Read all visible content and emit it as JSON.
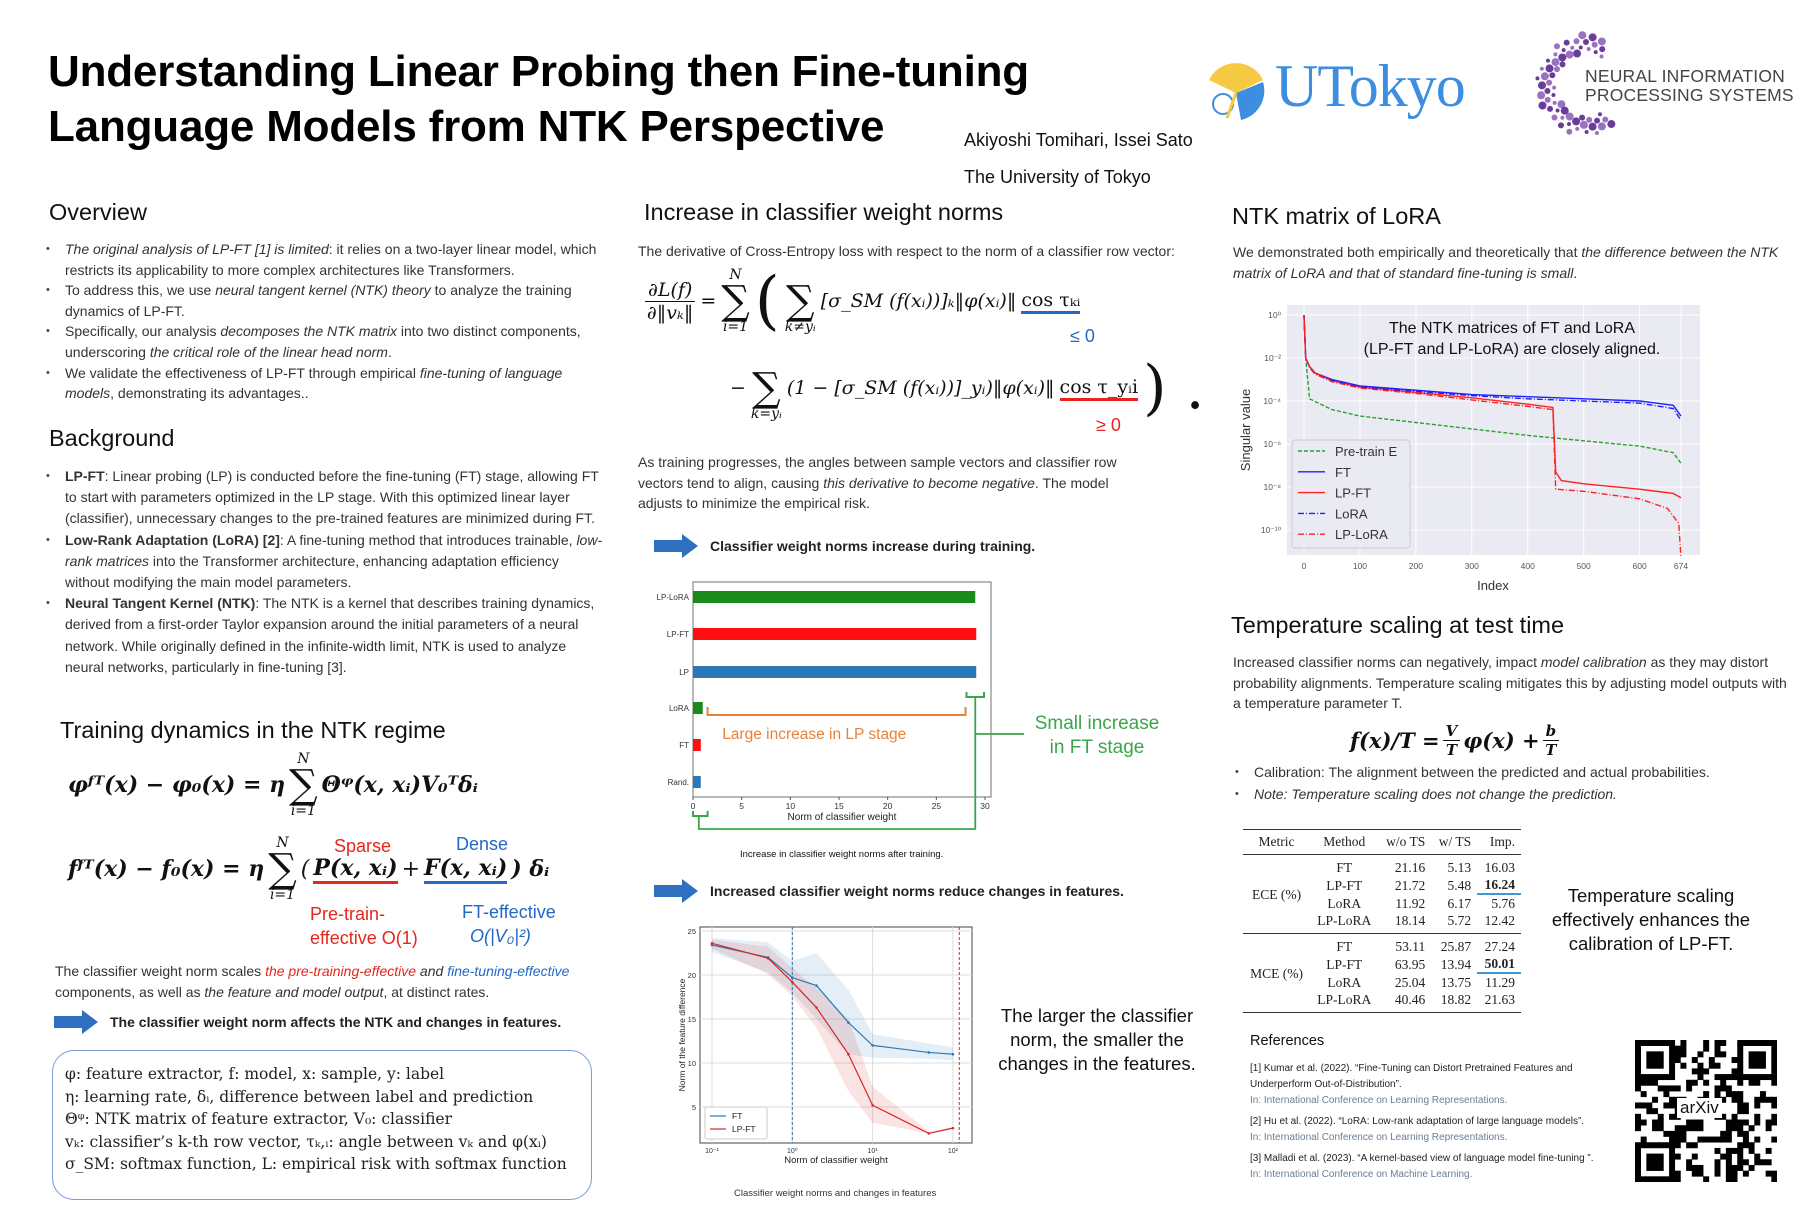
{
  "header": {
    "title_line1": "Understanding Linear Probing then Fine-tuning",
    "title_line2": "Language Models from NTK Perspective",
    "authors": "Akiyoshi Tomihari, Issei Sato",
    "affiliation": "The University of Tokyo",
    "logo_utokyo": "UTokyo",
    "logo_neurips_line1": "NEURAL INFORMATION",
    "logo_neurips_line2": "PROCESSING SYSTEMS"
  },
  "colors": {
    "red": "#e4261c",
    "blue": "#2168c8",
    "green": "#3aa64a",
    "orange": "#e8823a",
    "arrow": "#2f6fc0"
  },
  "overview": {
    "heading": "Overview",
    "bullets": [
      [
        [
          "The original analysis of LP-FT [1] is limited",
          "i"
        ],
        [
          ": it relies on a two-layer linear model, which restricts its applicability to more complex architectures like Transformers.",
          ""
        ]
      ],
      [
        [
          "To address this, we use ",
          ""
        ],
        [
          "neural tangent kernel (NTK) theory",
          "i"
        ],
        [
          " to analyze the training dynamics of LP-FT.",
          ""
        ]
      ],
      [
        [
          "Specifically, our analysis ",
          ""
        ],
        [
          "decomposes the NTK matrix",
          "i"
        ],
        [
          " into two distinct components, underscoring ",
          ""
        ],
        [
          "the critical role of the linear head norm",
          "i"
        ],
        [
          ".",
          ""
        ]
      ],
      [
        [
          "We validate the effectiveness of LP-FT through empirical ",
          ""
        ],
        [
          "fine-tuning of language models",
          "i"
        ],
        [
          ", demonstrating its advantages..",
          ""
        ]
      ]
    ]
  },
  "background": {
    "heading": "Background",
    "bullets": [
      [
        [
          "LP-FT",
          "b"
        ],
        [
          ": Linear probing (LP) is conducted before the fine-tuning (FT) stage, allowing FT to start with parameters optimized in the LP stage. With this optimized linear layer (classifier), unnecessary changes to the pre-trained features are minimized during FT.",
          ""
        ]
      ],
      [
        [
          "Low-Rank Adaptation (LoRA) [2]",
          "b"
        ],
        [
          ": A fine-tuning method that introduces trainable, ",
          ""
        ],
        [
          "low-rank matrices",
          "i"
        ],
        [
          " into the Transformer architecture, enhancing adaptation efficiency without modifying the main model parameters.",
          ""
        ]
      ],
      [
        [
          "Neural Tangent Kernel (NTK)",
          "b"
        ],
        [
          ": The NTK is a kernel that describes training dynamics, derived from a first-order Taylor expansion around the initial parameters of a neural network. While originally defined in the infinite-width limit, NTK is used to analyze neural networks, particularly in fine-tuning [3].",
          ""
        ]
      ]
    ]
  },
  "dynamics": {
    "heading": "Training dynamics in the NTK regime",
    "eq1": {
      "lhs": "φᶠᵀ(x) − φ₀(x) = η",
      "sum_up": "N",
      "sum_lo": "i=1",
      "rhs": "Θᵠ(x, xᵢ)V₀ᵀδᵢ"
    },
    "eq2": {
      "lhs": "fᶠᵀ(x) − f₀(x) = η",
      "sum_up": "N",
      "sum_lo": "i=1",
      "open": "(",
      "p_term": "P(x, xᵢ)",
      "plus": "+",
      "f_term": "F(x, xᵢ)",
      "close": ") δᵢ",
      "sparse": "Sparse",
      "dense": "Dense",
      "pre_label1": "Pre-train-",
      "pre_label2": "effective  O(1)",
      "ft_label1": "FT-effective",
      "ft_label2": "O(|V₀|²)"
    },
    "explanation": [
      [
        "The classifier weight norm scales ",
        ""
      ],
      [
        "the pre-training-effective",
        "i red"
      ],
      [
        " and ",
        "i"
      ],
      [
        "fine-tuning-effective",
        "i blue"
      ],
      [
        " components, as well as ",
        ""
      ],
      [
        "the feature and model output",
        "i"
      ],
      [
        ", at distinct rates.",
        ""
      ]
    ],
    "takeaway": "The classifier weight norm affects the NTK and changes in features.",
    "definitions": [
      "φ: feature extractor, f: model, x: sample, y: label",
      "η: learning rate, δᵢ, difference between label and prediction",
      "Θᵠ: NTK matrix of feature extractor, V₀: classifier",
      "vₖ: classifier’s k-th row vector, τₖ,ᵢ: angle between vₖ and φ(xᵢ)",
      "σ_SM: softmax function, L: empirical risk with softmax function"
    ]
  },
  "norms": {
    "heading": "Increase in classifier weight norms",
    "intro": "The derivative of Cross-Entropy loss with respect to the norm of a classifier row vector:",
    "deriv": {
      "num": "∂L(f)",
      "den": "∂‖vₖ‖",
      "eq": "=",
      "sum_up": "N",
      "sum_lo": "i=1",
      "inner_lo1": "k≠yᵢ",
      "term1": "[σ_SM (f(xᵢ))]ₖ‖φ(xᵢ)‖",
      "cos1": "cos τₖᵢ",
      "le": "≤ 0",
      "minus": "−",
      "inner_lo2": "k=yᵢ",
      "term2": "(1 − [σ_SM (f(xᵢ))]_yᵢ)‖φ(xᵢ)‖",
      "cos2": "cos τ_yᵢi",
      "ge": "≥ 0",
      "end": ")  ."
    },
    "paragraph": [
      [
        "As training progresses, the angles between sample vectors and classifier row vectors tend to align, causing ",
        ""
      ],
      [
        "this derivative to become negative",
        "i"
      ],
      [
        ". The model adjusts to minimize the empirical risk.",
        ""
      ]
    ],
    "takeaway1": "Classifier weight norms increase during training.",
    "bar_caption": "Increase in classifier weight norms after training.",
    "annot_large": "Large increase in LP stage",
    "annot_small_1": "Small increase",
    "annot_small_2": "in FT stage",
    "takeaway2": "Increased classifier weight norms reduce changes in features.",
    "line_caption": "Classifier weight norms and changes in features",
    "line_note": "The larger the classifier norm, the smaller the changes in the features."
  },
  "ntk": {
    "heading": "NTK matrix of LoRA",
    "text": [
      [
        "We demonstrated both empirically and theoretically that ",
        ""
      ],
      [
        "the difference between the NTK matrix of LoRA and that of standard fine-tuning is small",
        "i"
      ],
      [
        ".",
        ""
      ]
    ]
  },
  "temperature": {
    "heading": "Temperature scaling at test time",
    "text": [
      [
        "Increased classifier norms can negatively, impact ",
        ""
      ],
      [
        "model calibration",
        "i"
      ],
      [
        " as they may distort probability alignments. Temperature scaling mitigates this by adjusting model outputs with a temperature parameter T.",
        ""
      ]
    ],
    "formula": {
      "lhs": "f(x)/T = ",
      "v": "V",
      "t": "T",
      "mid": "φ(x) + ",
      "b": "b"
    },
    "bullets": [
      [
        [
          "Calibration: The alignment between the predicted and actual probabilities.",
          ""
        ]
      ],
      [
        [
          "Note: Temperature scaling does not change the prediction.",
          "i"
        ]
      ]
    ],
    "table": {
      "headers": [
        "Metric",
        "Method",
        "w/o TS",
        "w/ TS",
        "Imp."
      ],
      "groups": [
        {
          "metric": "ECE (%)",
          "rows": [
            [
              "FT",
              "21.16",
              "5.13",
              "16.03"
            ],
            [
              "LP-FT",
              "21.72",
              "5.48",
              "16.24"
            ],
            [
              "LoRA",
              "11.92",
              "6.17",
              "5.76"
            ],
            [
              "LP-LoRA",
              "18.14",
              "5.72",
              "12.42"
            ]
          ],
          "best_row": 1
        },
        {
          "metric": "MCE (%)",
          "rows": [
            [
              "FT",
              "53.11",
              "25.87",
              "27.24"
            ],
            [
              "LP-FT",
              "63.95",
              "13.94",
              "50.01"
            ],
            [
              "LoRA",
              "25.04",
              "13.75",
              "11.29"
            ],
            [
              "LP-LoRA",
              "40.46",
              "18.82",
              "21.63"
            ]
          ],
          "best_row": 1
        }
      ]
    },
    "side_note": "Temperature scaling effectively enhances the calibration of LP-FT."
  },
  "references": {
    "heading": "References",
    "items": [
      {
        "text": "[1] Kumar et al. (2022). “Fine-Tuning can Distort Pretrained Features and Underperform Out-of-Distribution”.",
        "venue": "In: International Conference on Learning Representations."
      },
      {
        "text": "[2] Hu et al. (2022). “LoRA: Low-rank adaptation of large language models”.",
        "venue": "In: International Conference on Learning Representations."
      },
      {
        "text": "[3] Malladi et al. (2023). “A kernel-based view of language model fine-tuning ”.",
        "venue": "In: International Conference on Machine Learning."
      }
    ],
    "qr_label": "arXiv"
  },
  "chart_data": [
    {
      "type": "bar",
      "orientation": "horizontal",
      "categories": [
        "LP-LoRA",
        "LP-FT",
        "LP",
        "LoRA",
        "FT",
        "Rand."
      ],
      "values": [
        29.0,
        29.1,
        29.1,
        1.0,
        0.8,
        0.8
      ],
      "colors": [
        "#1a8a1a",
        "#ff1010",
        "#2a78b8",
        "#1a8a1a",
        "#ff1010",
        "#2a78b8"
      ],
      "xlabel": "Norm of classifier weight",
      "xlim": [
        0,
        30.5
      ],
      "xticks": [
        0,
        5,
        10,
        15,
        20,
        25,
        30
      ]
    },
    {
      "type": "line",
      "xscale": "log",
      "x": [
        0.1,
        0.5,
        1,
        2,
        5,
        10,
        50,
        100
      ],
      "series": [
        {
          "name": "FT",
          "color": "#2a78b8",
          "values": [
            23.4,
            22.0,
            19.7,
            18.8,
            14.6,
            12.0,
            11.2,
            11.0
          ],
          "lower": [
            22.6,
            20.3,
            18.0,
            15.0,
            11.0,
            10.6,
            10.5,
            10.3
          ],
          "upper": [
            24.2,
            23.7,
            21.6,
            22.5,
            18.3,
            13.3,
            12.2,
            11.8
          ]
        },
        {
          "name": "LP-FT",
          "color": "#d62728",
          "values": [
            23.6,
            21.9,
            19.2,
            16.3,
            11.0,
            5.2,
            2.0,
            2.6
          ],
          "lower": [
            23.0,
            20.1,
            17.6,
            14.0,
            6.8,
            3.2,
            2.0,
            2.5
          ],
          "upper": [
            24.0,
            23.2,
            20.8,
            18.5,
            15.0,
            7.3,
            2.2,
            2.7
          ]
        }
      ],
      "vlines": [
        {
          "x": 1,
          "color": "#2a78b8"
        },
        {
          "x": 120,
          "color": "#d62728"
        }
      ],
      "xlabel": "Norm of classifier weight",
      "ylabel": "Norm of the feature difference",
      "xlim": [
        0.07,
        150
      ],
      "ylim": [
        0.9,
        25.4
      ],
      "xticks": [
        "10⁻¹",
        "10⁰",
        "10¹",
        "10²"
      ],
      "yticks": [
        5,
        10,
        15,
        20,
        25
      ],
      "legend": "lower-left",
      "grid": true
    },
    {
      "type": "line",
      "yscale": "log",
      "title": "The NTK matrices of FT and LoRA (LP-FT and LP-LoRA) are closely aligned.",
      "xlabel": "Index",
      "ylabel": "Singular value",
      "xlim": [
        -30,
        705
      ],
      "ylim_log10": [
        -11.5,
        0.5
      ],
      "xticks": [
        0,
        100,
        200,
        300,
        400,
        500,
        600,
        674
      ],
      "yticks": [
        "10⁰",
        "10⁻²",
        "10⁻⁴",
        "10⁻⁶",
        "10⁻⁸",
        "10⁻¹⁰"
      ],
      "legend": "lower-left",
      "grid": true,
      "series": [
        {
          "name": "Pre-train E",
          "color": "#2ca02c",
          "dash": "dashed",
          "x": [
            0,
            3,
            10,
            50,
            100,
            200,
            300,
            400,
            500,
            600,
            660,
            674
          ],
          "log10_values": [
            0,
            -2.0,
            -3.9,
            -4.4,
            -4.7,
            -5.0,
            -5.3,
            -5.6,
            -5.85,
            -6.1,
            -6.4,
            -6.9
          ]
        },
        {
          "name": "FT",
          "color": "#2020ff",
          "dash": "solid",
          "x": [
            0,
            3,
            10,
            20,
            50,
            100,
            200,
            300,
            400,
            500,
            600,
            660,
            674
          ],
          "log10_values": [
            0,
            -2.0,
            -2.4,
            -2.7,
            -3.0,
            -3.3,
            -3.5,
            -3.7,
            -3.8,
            -3.9,
            -4.0,
            -4.2,
            -4.7
          ]
        },
        {
          "name": "LP-FT",
          "color": "#ff2020",
          "dash": "solid",
          "x": [
            0,
            3,
            10,
            20,
            50,
            100,
            200,
            300,
            400,
            445,
            450,
            460,
            500,
            600,
            660,
            674
          ],
          "log10_values": [
            0,
            -2.0,
            -2.4,
            -2.7,
            -3.05,
            -3.35,
            -3.6,
            -3.85,
            -4.15,
            -4.3,
            -7.3,
            -7.7,
            -7.85,
            -8.1,
            -8.3,
            -8.5
          ]
        },
        {
          "name": "LoRA",
          "color": "#2020ff",
          "dash": "dashdot",
          "x": [
            0,
            3,
            10,
            20,
            50,
            100,
            200,
            300,
            400,
            500,
            600,
            660,
            674
          ],
          "log10_values": [
            0,
            -2.0,
            -2.45,
            -2.75,
            -3.05,
            -3.35,
            -3.55,
            -3.75,
            -3.9,
            -4.0,
            -4.1,
            -4.35,
            -4.9
          ]
        },
        {
          "name": "LP-LoRA",
          "color": "#ff2020",
          "dash": "dashdot",
          "x": [
            0,
            3,
            10,
            20,
            50,
            100,
            200,
            300,
            400,
            445,
            450,
            500,
            600,
            650,
            670,
            674
          ],
          "log10_values": [
            0,
            -2.0,
            -2.45,
            -2.75,
            -3.1,
            -3.4,
            -3.65,
            -3.95,
            -4.25,
            -4.4,
            -8.1,
            -8.2,
            -8.55,
            -9.0,
            -9.7,
            -11.3
          ]
        }
      ]
    }
  ]
}
